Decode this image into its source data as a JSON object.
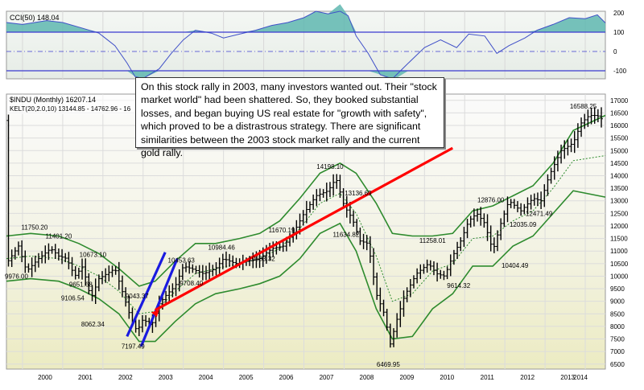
{
  "cci": {
    "header": "CCI(50) 148.04",
    "y_ticks": [
      200,
      100,
      0,
      -100
    ],
    "colors": {
      "fill": "#5fb7b0",
      "line": "#4050c8",
      "band": "#3a3ad0"
    }
  },
  "main": {
    "header1": "$INDU (Monthly) 16207.14",
    "header2": "KELT(20,2.0,10) 13144.85 - 14762.96 - 16",
    "y_ticks": [
      17000,
      16500,
      16000,
      15500,
      15000,
      14500,
      14000,
      13500,
      13000,
      12500,
      12000,
      11500,
      11000,
      10500,
      10000,
      9500,
      9000,
      8500,
      8000,
      7500,
      7000,
      6500
    ],
    "x_labels": [
      "2000",
      "2001",
      "2002",
      "2003",
      "2004",
      "2005",
      "2006",
      "2007",
      "2008",
      "2009",
      "2010",
      "2011",
      "2012",
      "2013",
      "2014"
    ],
    "annotations": [
      "11750.20",
      "11401.20",
      "9976.00",
      "10673.10",
      "9651.68",
      "9106.54",
      "8062.34",
      "9043.37",
      "7197.49",
      "10453.63",
      "9708.40",
      "10984.46",
      "10683.32",
      "11670.19",
      "14198.10",
      "13136.69",
      "11634.82",
      "6469.95",
      "11258.01",
      "9614.32",
      "12876.00",
      "10404.49",
      "12035.09",
      "12471.49",
      "16588.25"
    ],
    "colors": {
      "band": "#2e8b2e",
      "up": "#000000",
      "trend_red": "#ff0000",
      "trend_blue": "#1a1ae0"
    }
  },
  "note": "On this stock rally in 2003, many investors wanted out.  Their \"stock market world\" had been shattered.  So, they booked substantial losses, and began buying US real estate for \"growth with safety\", which proved to be a distrastrous strategy.  There are significant similarities between the 2003 stock market rally and the current gold rally.",
  "bottom_fragment": "",
  "chart_data": {
    "type": "line",
    "title": "$INDU (Monthly) 16207.14",
    "x": [
      "2000",
      "2001",
      "2002",
      "2003",
      "2004",
      "2005",
      "2006",
      "2007",
      "2008",
      "2009",
      "2010",
      "2011",
      "2012",
      "2013",
      "2014"
    ],
    "series": [
      {
        "name": "$INDU (Monthly)",
        "values": [
          11100,
          10600,
          10000,
          8000,
          10400,
          10700,
          11400,
          13100,
          11500,
          9700,
          10900,
          12000,
          12900,
          15200,
          16200
        ]
      },
      {
        "name": "KELT(20,2.0,10)",
        "values": [
          10500,
          10300,
          9700,
          8300,
          10000,
          10400,
          10900,
          12600,
          11800,
          9300,
          10300,
          11600,
          12600,
          14300,
          14760
        ]
      }
    ],
    "ylim": [
      6300,
      17100
    ],
    "grid": true,
    "ylabel": ""
  }
}
